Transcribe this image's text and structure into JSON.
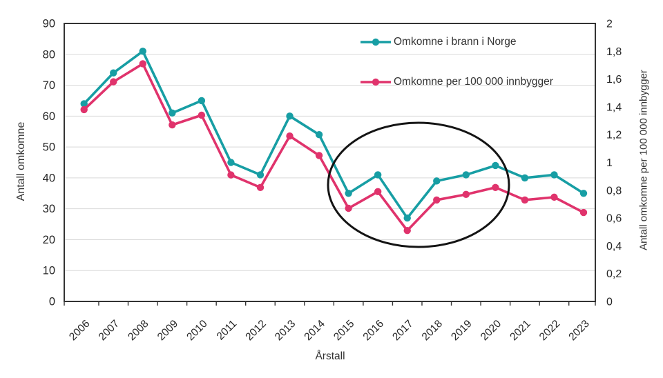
{
  "chart_data": {
    "type": "line",
    "title": "",
    "xlabel": "Årstall",
    "x_categories": [
      "2006",
      "2007",
      "2008",
      "2009",
      "2010",
      "2011",
      "2012",
      "2013",
      "2014",
      "2015",
      "2016",
      "2017",
      "2018",
      "2019",
      "2020",
      "2021",
      "2022",
      "2023"
    ],
    "series": [
      {
        "name": "Omkomne i brann i Norge",
        "axis": "left",
        "color": "#179EA4",
        "values": [
          64,
          74,
          81,
          61,
          65,
          45,
          41,
          60,
          54,
          35,
          41,
          27,
          39,
          41,
          44,
          40,
          41,
          35
        ]
      },
      {
        "name": "Omkomne per 100 000 innbygger",
        "axis": "right",
        "color": "#E0336C",
        "values": [
          1.38,
          1.58,
          1.71,
          1.27,
          1.34,
          0.91,
          0.82,
          1.19,
          1.05,
          0.67,
          0.79,
          0.51,
          0.73,
          0.77,
          0.82,
          0.73,
          0.75,
          0.64
        ]
      }
    ],
    "left_axis": {
      "label": "Antall omkomne",
      "min": 0,
      "max": 90,
      "tick_step": 10,
      "tick_labels": [
        "0",
        "10",
        "20",
        "30",
        "40",
        "50",
        "60",
        "70",
        "80",
        "90"
      ]
    },
    "right_axis": {
      "label": "Antall omkomne per 100 000 innbygger",
      "min": 0,
      "max": 2,
      "tick_step": 0.2,
      "tick_labels": [
        "0",
        "0,2",
        "0,4",
        "0,6",
        "0,8",
        "1",
        "1,2",
        "1,4",
        "1,6",
        "1,8",
        "2"
      ]
    },
    "grid": "horizontal",
    "legend_position": "top-right-inside",
    "annotation": {
      "shape": "ellipse",
      "circled_years": "2015-2020"
    }
  },
  "style": {
    "grid_color": "#D9D9D9",
    "border_color": "#333333",
    "tick_text_color": "#262626",
    "annotation_color": "#141414"
  }
}
